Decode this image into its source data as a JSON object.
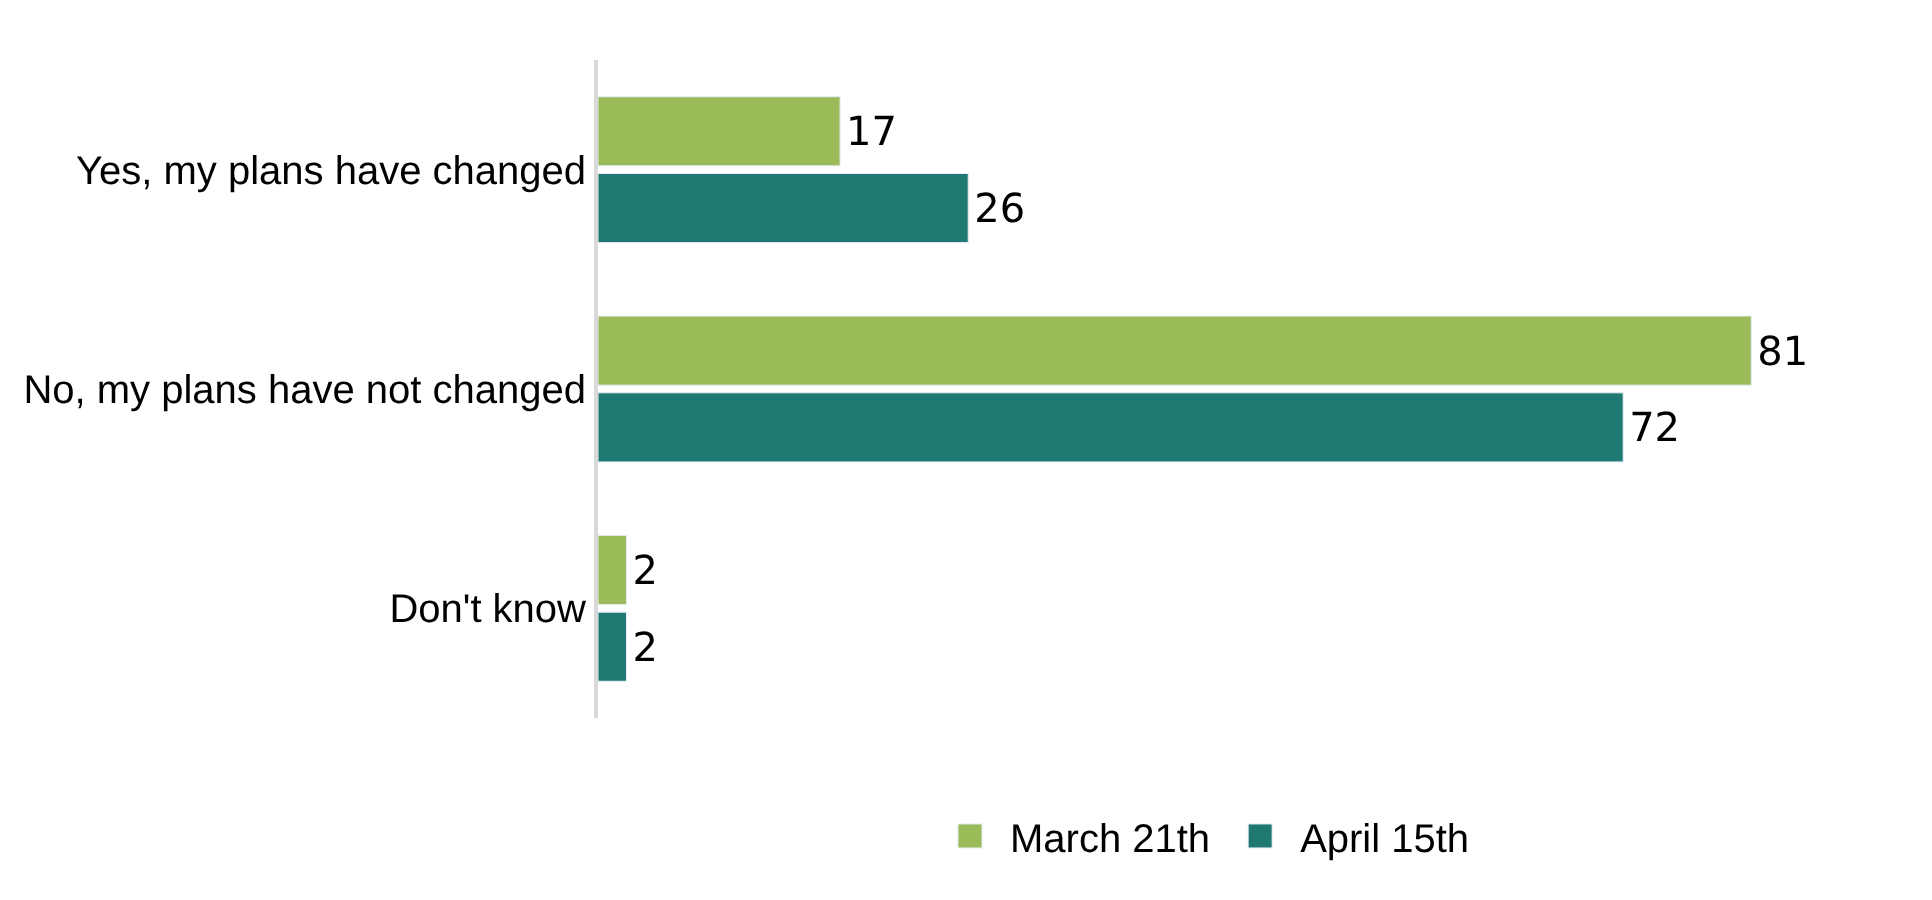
{
  "chart_data": {
    "type": "bar",
    "orientation": "horizontal",
    "categories": [
      "Yes, my plans have changed",
      "No, my plans have not changed",
      "Don't know"
    ],
    "series": [
      {
        "name": "March 21th",
        "color": "#9bbb59",
        "values": [
          17,
          81,
          2
        ]
      },
      {
        "name": "April 15th",
        "color": "#1f7872",
        "values": [
          26,
          72,
          2
        ]
      }
    ],
    "data_labels": true,
    "legend": "bottom",
    "tick_labels": "y"
  }
}
